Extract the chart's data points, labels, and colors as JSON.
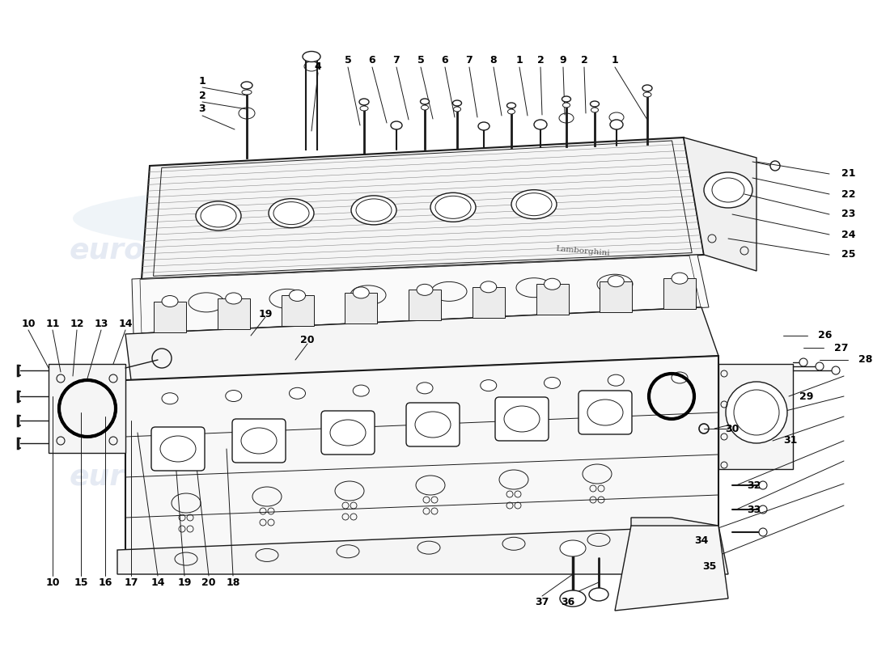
{
  "background_color": "#ffffff",
  "line_color": "#1a1a1a",
  "watermark_color": "#ccd6e8",
  "fig_width": 11.0,
  "fig_height": 8.0,
  "top_numbers": [
    "1",
    "2",
    "3",
    "4",
    "5",
    "6",
    "7",
    "5",
    "6",
    "7",
    "8",
    "1",
    "2",
    "9",
    "2",
    "1"
  ],
  "right_numbers_upper": [
    "21",
    "22",
    "23",
    "24",
    "25"
  ],
  "right_numbers_lower": [
    "26",
    "27",
    "28",
    "29",
    "30",
    "31",
    "32",
    "33",
    "34",
    "35"
  ],
  "left_numbers_upper": [
    "10",
    "11",
    "12",
    "13",
    "14"
  ],
  "bottom_numbers": [
    "10",
    "15",
    "16",
    "17",
    "14",
    "19",
    "20",
    "18",
    "37",
    "36"
  ]
}
